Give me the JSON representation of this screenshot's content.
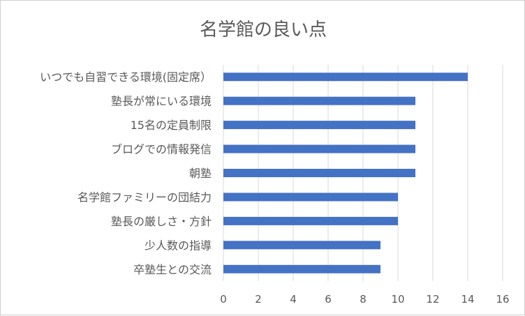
{
  "chart_data": {
    "type": "bar",
    "orientation": "horizontal",
    "title": "名学館の良い点",
    "categories": [
      "いつでも自習できる環境(固定席）",
      "塾長が常にいる環境",
      "15名の定員制限",
      "ブログでの情報発信",
      "朝塾",
      "名学館ファミリーの団結力",
      "塾長の厳しさ・方針",
      "少人数の指導",
      "卒塾生との交流"
    ],
    "values": [
      14,
      11,
      11,
      11,
      11,
      10,
      10,
      9,
      9
    ],
    "xlim": [
      0,
      16
    ],
    "xticks": [
      "0",
      "2",
      "4",
      "6",
      "8",
      "10",
      "12",
      "14",
      "16"
    ],
    "xlabel": "",
    "ylabel": "",
    "grid": "vertical",
    "legend": "none",
    "colors": {
      "bar": "#4472C4",
      "grid": "#d9d9d9",
      "text": "#595959"
    }
  }
}
